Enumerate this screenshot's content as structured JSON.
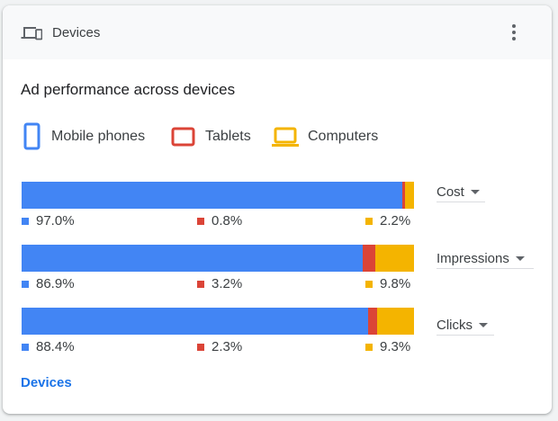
{
  "header": {
    "title": "Devices",
    "icon": "devices-icon",
    "menu_icon": "more-vert-icon"
  },
  "section": {
    "title": "Ad performance across devices"
  },
  "legend": [
    {
      "label": "Mobile phones",
      "icon": "mobile-phone-icon",
      "color": "#4285f4"
    },
    {
      "label": "Tablets",
      "icon": "tablet-icon",
      "color": "#db4437"
    },
    {
      "label": "Computers",
      "icon": "computer-icon",
      "color": "#f4b400"
    }
  ],
  "chart_data": {
    "type": "bar",
    "stacked": true,
    "orientation": "horizontal",
    "categories": [
      "Cost",
      "Impressions",
      "Clicks"
    ],
    "series": [
      {
        "name": "Mobile phones",
        "values": [
          97.0,
          86.9,
          88.4
        ],
        "labels": [
          "97.0%",
          "86.9%",
          "88.4%"
        ]
      },
      {
        "name": "Tablets",
        "values": [
          0.8,
          3.2,
          2.3
        ],
        "labels": [
          "0.8%",
          "3.2%",
          "2.3%"
        ]
      },
      {
        "name": "Computers",
        "values": [
          2.2,
          9.8,
          9.3
        ],
        "labels": [
          "2.2%",
          "9.8%",
          "9.3%"
        ]
      }
    ]
  },
  "metrics": [
    "Cost",
    "Impressions",
    "Clicks"
  ],
  "footer": {
    "link_label": "Devices"
  }
}
